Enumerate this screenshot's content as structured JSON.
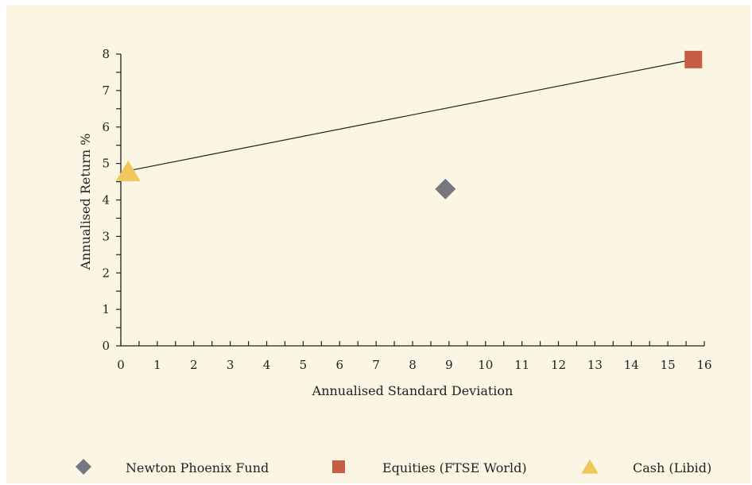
{
  "chart_data": {
    "type": "scatter",
    "xlabel": "Annualised Standard Deviation",
    "ylabel": "Annualised Return %",
    "xlim": [
      0,
      16
    ],
    "ylim": [
      0,
      8
    ],
    "xticks": [
      0,
      1,
      2,
      3,
      4,
      5,
      6,
      7,
      8,
      9,
      10,
      11,
      12,
      13,
      14,
      15,
      16
    ],
    "yticks": [
      0,
      1,
      2,
      3,
      4,
      5,
      6,
      7,
      8
    ],
    "grid": false,
    "legend_position": "bottom",
    "series": [
      {
        "name": "Newton Phoenix Fund",
        "marker": "diamond",
        "color": "#76777f",
        "x": 8.9,
        "y": 4.3
      },
      {
        "name": "Equities (FTSE World)",
        "marker": "square",
        "color": "#c85d45",
        "x": 15.7,
        "y": 7.85
      },
      {
        "name": "Cash (Libid)",
        "marker": "triangle",
        "color": "#f0c75a",
        "x": 0.2,
        "y": 4.8
      }
    ],
    "line": {
      "from": {
        "x": 0.2,
        "y": 4.8
      },
      "to": {
        "x": 15.7,
        "y": 7.85
      },
      "color": "#222222"
    }
  },
  "legend": {
    "items": [
      {
        "label": "Newton Phoenix Fund",
        "marker": "diamond",
        "color": "#76777f"
      },
      {
        "label": "Equities (FTSE World)",
        "marker": "square",
        "color": "#c85d45"
      },
      {
        "label": "Cash (Libid)",
        "marker": "triangle",
        "color": "#f0c75a"
      }
    ]
  }
}
